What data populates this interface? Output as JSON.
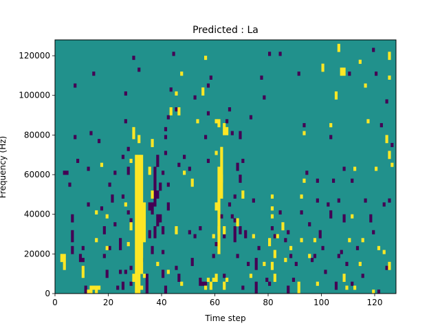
{
  "chart_data": {
    "type": "heatmap",
    "title": "Predicted : La",
    "xlabel": "Time step",
    "ylabel": "Frequency (Hz)",
    "xlim": [
      0,
      128
    ],
    "ylim": [
      0,
      128000
    ],
    "x_ticks": [
      0,
      20,
      40,
      60,
      80,
      100,
      120
    ],
    "y_ticks": [
      0,
      20000,
      40000,
      60000,
      80000,
      100000,
      120000
    ],
    "x_tick_labels": [
      "0",
      "20",
      "40",
      "60",
      "80",
      "100",
      "120"
    ],
    "y_tick_labels": [
      "0",
      "20000",
      "40000",
      "60000",
      "80000",
      "100000",
      "120000"
    ],
    "grid": false,
    "legend": false,
    "colormap": "viridis",
    "value_levels": [
      -1,
      0,
      1
    ],
    "colors": {
      "low": "#440154",
      "mid": "#21918c",
      "high": "#fde725"
    },
    "bin_height_hz": 2000,
    "background_value": 0,
    "high_cells": [
      [
        3,
        12000,
        20000
      ],
      [
        2,
        16000,
        20000
      ],
      [
        10,
        8000,
        14000
      ],
      [
        12,
        0,
        2000
      ],
      [
        13,
        0,
        4000
      ],
      [
        14,
        2000,
        4000
      ],
      [
        16,
        2000,
        4000
      ],
      [
        15,
        0,
        4000
      ],
      [
        17,
        64000,
        66000
      ],
      [
        15,
        40000,
        42000
      ],
      [
        15,
        26000,
        28000
      ],
      [
        19,
        38000,
        40000
      ],
      [
        19,
        22000,
        24000
      ],
      [
        26,
        44000,
        46000
      ],
      [
        27,
        24000,
        26000
      ],
      [
        28,
        32000,
        36000
      ],
      [
        28,
        66000,
        68000
      ],
      [
        29,
        6000,
        10000
      ],
      [
        30,
        0,
        70000
      ],
      [
        31,
        0,
        70000
      ],
      [
        32,
        10000,
        70000
      ],
      [
        33,
        26000,
        46000
      ],
      [
        33,
        8000,
        10000
      ],
      [
        32,
        2000,
        4000
      ],
      [
        31,
        76000,
        80000
      ],
      [
        29,
        78000,
        84000
      ],
      [
        35,
        60000,
        64000
      ],
      [
        36,
        74000,
        78000
      ],
      [
        36,
        48000,
        52000
      ],
      [
        38,
        14000,
        16000
      ],
      [
        42,
        10000,
        12000
      ],
      [
        45,
        30000,
        34000
      ],
      [
        47,
        4000,
        6000
      ],
      [
        48,
        60000,
        62000
      ],
      [
        43,
        90000,
        94000
      ],
      [
        46,
        90000,
        94000
      ],
      [
        45,
        100000,
        102000
      ],
      [
        47,
        110000,
        112000
      ],
      [
        51,
        54000,
        58000
      ],
      [
        53,
        86000,
        88000
      ],
      [
        55,
        100000,
        104000
      ],
      [
        56,
        118000,
        120000
      ],
      [
        57,
        6000,
        8000
      ],
      [
        56,
        2000,
        4000
      ],
      [
        58,
        2000,
        6000
      ],
      [
        59,
        28000,
        30000
      ],
      [
        59,
        6000,
        8000
      ],
      [
        60,
        6000,
        10000
      ],
      [
        60,
        42000,
        46000
      ],
      [
        61,
        20000,
        64000
      ],
      [
        62,
        48000,
        74000
      ],
      [
        63,
        30000,
        34000
      ],
      [
        60,
        70000,
        72000
      ],
      [
        63,
        2000,
        6000
      ],
      [
        64,
        6000,
        8000
      ],
      [
        62,
        56000,
        60000
      ],
      [
        63,
        80000,
        86000
      ],
      [
        64,
        80000,
        84000
      ],
      [
        60,
        86000,
        88000
      ],
      [
        61,
        84000,
        88000
      ],
      [
        61,
        30000,
        34000
      ],
      [
        68,
        34000,
        38000
      ],
      [
        70,
        48000,
        52000
      ],
      [
        73,
        8000,
        10000
      ],
      [
        74,
        28000,
        30000
      ],
      [
        78,
        14000,
        16000
      ],
      [
        80,
        24000,
        28000
      ],
      [
        81,
        12000,
        16000
      ],
      [
        82,
        6000,
        10000
      ],
      [
        82,
        18000,
        22000
      ],
      [
        83,
        28000,
        30000
      ],
      [
        81,
        42000,
        44000
      ],
      [
        81,
        48000,
        50000
      ],
      [
        81,
        38000,
        40000
      ],
      [
        85,
        32000,
        36000
      ],
      [
        86,
        16000,
        18000
      ],
      [
        88,
        22000,
        24000
      ],
      [
        92,
        26000,
        28000
      ],
      [
        93,
        80000,
        82000
      ],
      [
        91,
        0,
        6000
      ],
      [
        92,
        48000,
        50000
      ],
      [
        93,
        56000,
        58000
      ],
      [
        95,
        18000,
        20000
      ],
      [
        97,
        26000,
        28000
      ],
      [
        98,
        4000,
        6000
      ],
      [
        100,
        112000,
        116000
      ],
      [
        103,
        84000,
        86000
      ],
      [
        105,
        98000,
        102000
      ],
      [
        106,
        122000,
        126000
      ],
      [
        107,
        110000,
        114000
      ],
      [
        108,
        110000,
        114000
      ],
      [
        112,
        62000,
        64000
      ],
      [
        110,
        26000,
        28000
      ],
      [
        111,
        38000,
        40000
      ],
      [
        108,
        6000,
        10000
      ],
      [
        109,
        2000,
        4000
      ],
      [
        112,
        2000,
        4000
      ],
      [
        114,
        14000,
        16000
      ],
      [
        115,
        26000,
        28000
      ],
      [
        116,
        104000,
        106000
      ],
      [
        114,
        116000,
        118000
      ],
      [
        117,
        86000,
        88000
      ],
      [
        120,
        62000,
        64000
      ],
      [
        121,
        22000,
        24000
      ],
      [
        123,
        20000,
        22000
      ],
      [
        124,
        76000,
        80000
      ],
      [
        125,
        12000,
        16000
      ],
      [
        125,
        68000,
        72000
      ],
      [
        125,
        118000,
        122000
      ],
      [
        125,
        108000,
        110000
      ],
      [
        126,
        64000,
        66000
      ],
      [
        119,
        0,
        2000
      ]
    ],
    "low_cells": [
      [
        3,
        60000,
        62000
      ],
      [
        4,
        60000,
        62000
      ],
      [
        5,
        54000,
        56000
      ],
      [
        6,
        20000,
        24000
      ],
      [
        6,
        26000,
        32000
      ],
      [
        6,
        36000,
        40000
      ],
      [
        7,
        104000,
        106000
      ],
      [
        7,
        78000,
        80000
      ],
      [
        8,
        66000,
        68000
      ],
      [
        9,
        16000,
        20000
      ],
      [
        10,
        12000,
        14000
      ],
      [
        10,
        22000,
        24000
      ],
      [
        10,
        16000,
        18000
      ],
      [
        11,
        0,
        4000
      ],
      [
        12,
        62000,
        64000
      ],
      [
        12,
        44000,
        46000
      ],
      [
        13,
        80000,
        82000
      ],
      [
        14,
        110000,
        112000
      ],
      [
        16,
        76000,
        78000
      ],
      [
        17,
        42000,
        44000
      ],
      [
        18,
        30000,
        34000
      ],
      [
        18,
        18000,
        20000
      ],
      [
        19,
        8000,
        12000
      ],
      [
        20,
        22000,
        24000
      ],
      [
        20,
        54000,
        56000
      ],
      [
        21,
        46000,
        50000
      ],
      [
        22,
        60000,
        62000
      ],
      [
        22,
        34000,
        36000
      ],
      [
        23,
        2000,
        4000
      ],
      [
        24,
        10000,
        12000
      ],
      [
        24,
        22000,
        28000
      ],
      [
        25,
        2000,
        6000
      ],
      [
        25,
        48000,
        50000
      ],
      [
        25,
        68000,
        70000
      ],
      [
        26,
        100000,
        102000
      ],
      [
        26,
        86000,
        88000
      ],
      [
        27,
        60000,
        64000
      ],
      [
        27,
        40000,
        42000
      ],
      [
        28,
        36000,
        38000
      ],
      [
        28,
        12000,
        14000
      ],
      [
        28,
        4000,
        6000
      ],
      [
        27,
        72000,
        74000
      ],
      [
        29,
        118000,
        120000
      ],
      [
        26,
        10000,
        12000
      ],
      [
        31,
        112000,
        114000
      ],
      [
        32,
        16000,
        18000
      ],
      [
        34,
        0,
        10000
      ],
      [
        35,
        28000,
        32000
      ],
      [
        35,
        42000,
        46000
      ],
      [
        36,
        20000,
        24000
      ],
      [
        36,
        40000,
        46000
      ],
      [
        37,
        28000,
        34000
      ],
      [
        37,
        44000,
        64000
      ],
      [
        38,
        34000,
        40000
      ],
      [
        38,
        64000,
        70000
      ],
      [
        38,
        48000,
        52000
      ],
      [
        39,
        36000,
        40000
      ],
      [
        39,
        52000,
        56000
      ],
      [
        40,
        30000,
        34000
      ],
      [
        40,
        60000,
        62000
      ],
      [
        41,
        70000,
        72000
      ],
      [
        41,
        78000,
        80000
      ],
      [
        41,
        82000,
        84000
      ],
      [
        40,
        8000,
        12000
      ],
      [
        40,
        20000,
        22000
      ],
      [
        41,
        0,
        4000
      ],
      [
        42,
        42000,
        46000
      ],
      [
        42,
        88000,
        90000
      ],
      [
        43,
        102000,
        104000
      ],
      [
        44,
        120000,
        122000
      ],
      [
        45,
        12000,
        14000
      ],
      [
        45,
        92000,
        94000
      ],
      [
        46,
        6000,
        10000
      ],
      [
        48,
        68000,
        70000
      ],
      [
        50,
        62000,
        64000
      ],
      [
        50,
        30000,
        32000
      ],
      [
        51,
        14000,
        18000
      ],
      [
        52,
        98000,
        100000
      ],
      [
        52,
        28000,
        30000
      ],
      [
        54,
        4000,
        8000
      ],
      [
        55,
        4000,
        6000
      ],
      [
        56,
        78000,
        80000
      ],
      [
        56,
        4000,
        6000
      ],
      [
        57,
        66000,
        68000
      ],
      [
        57,
        90000,
        92000
      ],
      [
        58,
        108000,
        110000
      ],
      [
        59,
        18000,
        20000
      ],
      [
        60,
        24000,
        26000
      ],
      [
        62,
        38000,
        40000
      ],
      [
        63,
        28000,
        30000
      ],
      [
        63,
        8000,
        10000
      ],
      [
        64,
        86000,
        88000
      ],
      [
        65,
        44000,
        46000
      ],
      [
        65,
        92000,
        94000
      ],
      [
        66,
        80000,
        82000
      ],
      [
        66,
        38000,
        40000
      ],
      [
        67,
        48000,
        50000
      ],
      [
        67,
        36000,
        38000
      ],
      [
        67,
        26000,
        34000
      ],
      [
        68,
        62000,
        66000
      ],
      [
        68,
        18000,
        20000
      ],
      [
        69,
        30000,
        34000
      ],
      [
        69,
        56000,
        60000
      ],
      [
        69,
        78000,
        82000
      ],
      [
        70,
        2000,
        4000
      ],
      [
        70,
        66000,
        68000
      ],
      [
        71,
        28000,
        32000
      ],
      [
        72,
        14000,
        16000
      ],
      [
        73,
        88000,
        90000
      ],
      [
        74,
        46000,
        48000
      ],
      [
        75,
        12000,
        18000
      ],
      [
        75,
        0,
        6000
      ],
      [
        76,
        22000,
        24000
      ],
      [
        77,
        108000,
        110000
      ],
      [
        78,
        98000,
        100000
      ],
      [
        79,
        6000,
        8000
      ],
      [
        80,
        120000,
        122000
      ],
      [
        80,
        4000,
        6000
      ],
      [
        81,
        32000,
        34000
      ],
      [
        82,
        28000,
        30000
      ],
      [
        84,
        40000,
        42000
      ],
      [
        84,
        120000,
        122000
      ],
      [
        86,
        26000,
        28000
      ],
      [
        87,
        0,
        4000
      ],
      [
        87,
        30000,
        32000
      ],
      [
        88,
        18000,
        20000
      ],
      [
        89,
        6000,
        8000
      ],
      [
        90,
        14000,
        16000
      ],
      [
        91,
        110000,
        112000
      ],
      [
        93,
        84000,
        86000
      ],
      [
        94,
        60000,
        62000
      ],
      [
        95,
        34000,
        36000
      ],
      [
        96,
        16000,
        18000
      ],
      [
        97,
        18000,
        20000
      ],
      [
        98,
        56000,
        58000
      ],
      [
        98,
        46000,
        48000
      ],
      [
        99,
        28000,
        32000
      ],
      [
        100,
        22000,
        24000
      ],
      [
        101,
        10000,
        12000
      ],
      [
        102,
        44000,
        46000
      ],
      [
        103,
        38000,
        42000
      ],
      [
        104,
        56000,
        58000
      ],
      [
        105,
        2000,
        6000
      ],
      [
        106,
        18000,
        20000
      ],
      [
        106,
        46000,
        48000
      ],
      [
        107,
        20000,
        22000
      ],
      [
        108,
        36000,
        40000
      ],
      [
        108,
        62000,
        64000
      ],
      [
        109,
        14000,
        16000
      ],
      [
        110,
        110000,
        112000
      ],
      [
        111,
        4000,
        6000
      ],
      [
        111,
        56000,
        58000
      ],
      [
        113,
        22000,
        24000
      ],
      [
        115,
        8000,
        10000
      ],
      [
        116,
        46000,
        48000
      ],
      [
        118,
        36000,
        40000
      ],
      [
        119,
        30000,
        32000
      ],
      [
        119,
        122000,
        124000
      ],
      [
        120,
        110000,
        112000
      ],
      [
        121,
        0,
        2000
      ],
      [
        122,
        84000,
        86000
      ],
      [
        123,
        44000,
        46000
      ],
      [
        124,
        12000,
        14000
      ],
      [
        124,
        96000,
        98000
      ],
      [
        125,
        46000,
        48000
      ],
      [
        126,
        74000,
        76000
      ],
      [
        92,
        40000,
        42000
      ],
      [
        103,
        78000,
        80000
      ],
      [
        46,
        64000,
        66000
      ],
      [
        42,
        54000,
        56000
      ],
      [
        57,
        104000,
        106000
      ],
      [
        54,
        32000,
        34000
      ]
    ]
  }
}
